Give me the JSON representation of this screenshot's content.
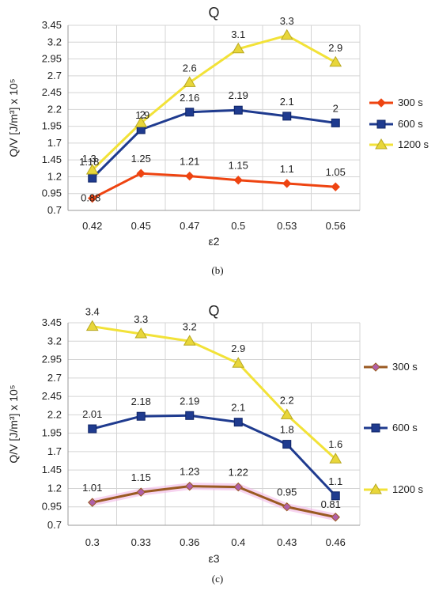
{
  "chart_data": [
    {
      "type": "line",
      "title": "Q",
      "xlabel": "ε2",
      "ylabel": "Q/V [J/m³] x 10⁵",
      "categories": [
        "0.42",
        "0.45",
        "0.47",
        "0.5",
        "0.53",
        "0.56"
      ],
      "yticks": [
        "0.7",
        "0.95",
        "1.2",
        "1.45",
        "1.7",
        "1.95",
        "2.2",
        "2.45",
        "2.7",
        "2.95",
        "3.2",
        "3.45"
      ],
      "ylim": [
        0.7,
        3.45
      ],
      "grid": true,
      "legend": "right",
      "caption": "(b)",
      "series": [
        {
          "name": "300 s",
          "values": [
            0.88,
            1.25,
            1.21,
            1.15,
            1.1,
            1.05
          ],
          "labels": [
            "0.88",
            "1.25",
            "1.21",
            "1.15",
            "1.1",
            "1.05"
          ],
          "color": "#ee4411",
          "marker": "diamond",
          "marker_fill": "#ee4411"
        },
        {
          "name": "600 s",
          "values": [
            1.18,
            1.9,
            2.16,
            2.19,
            2.1,
            2.0
          ],
          "labels": [
            "1.18",
            "1.9",
            "2.16",
            "2.19",
            "2.1",
            "2"
          ],
          "color": "#1f3b8f",
          "marker": "square",
          "marker_fill": "#1f3b8f"
        },
        {
          "name": "1200 s",
          "values": [
            1.3,
            2.0,
            2.6,
            3.1,
            3.3,
            2.9
          ],
          "labels": [
            "1.3",
            "2",
            "2.6",
            "3.1",
            "3.3",
            "2.9"
          ],
          "color": "#f2e238",
          "marker": "triangle",
          "marker_fill": "#e8d63a"
        }
      ]
    },
    {
      "type": "line",
      "title": "Q",
      "xlabel": "ε3",
      "ylabel": "Q/V [J/m³] x 10⁵",
      "categories": [
        "0.3",
        "0.33",
        "0.36",
        "0.4",
        "0.43",
        "0.46"
      ],
      "yticks": [
        "0.7",
        "0.95",
        "1.2",
        "1.45",
        "1.7",
        "1.95",
        "2.2",
        "2.45",
        "2.7",
        "2.95",
        "3.2",
        "3.45"
      ],
      "ylim": [
        0.7,
        3.45
      ],
      "grid": true,
      "legend": "right",
      "caption": "(c)",
      "series": [
        {
          "name": "300 s",
          "values": [
            1.01,
            1.15,
            1.23,
            1.22,
            0.95,
            0.81
          ],
          "labels": [
            "1.01",
            "1.15",
            "1.23",
            "1.22",
            "0.95",
            "0.81"
          ],
          "color": "#9a5a22",
          "marker": "diamond",
          "marker_fill": "#b05fa8"
        },
        {
          "name": "600 s",
          "values": [
            2.01,
            2.18,
            2.19,
            2.1,
            1.8,
            1.1
          ],
          "labels": [
            "2.01",
            "2.18",
            "2.19",
            "2.1",
            "1.8",
            "1.1"
          ],
          "color": "#1f3b8f",
          "marker": "square",
          "marker_fill": "#1f3b8f"
        },
        {
          "name": "1200 s",
          "values": [
            3.4,
            3.3,
            3.2,
            2.9,
            2.2,
            1.6
          ],
          "labels": [
            "3.4",
            "3.3",
            "3.2",
            "2.9",
            "2.2",
            "1.6"
          ],
          "color": "#f2e238",
          "marker": "triangle",
          "marker_fill": "#e8d63a"
        }
      ]
    }
  ]
}
